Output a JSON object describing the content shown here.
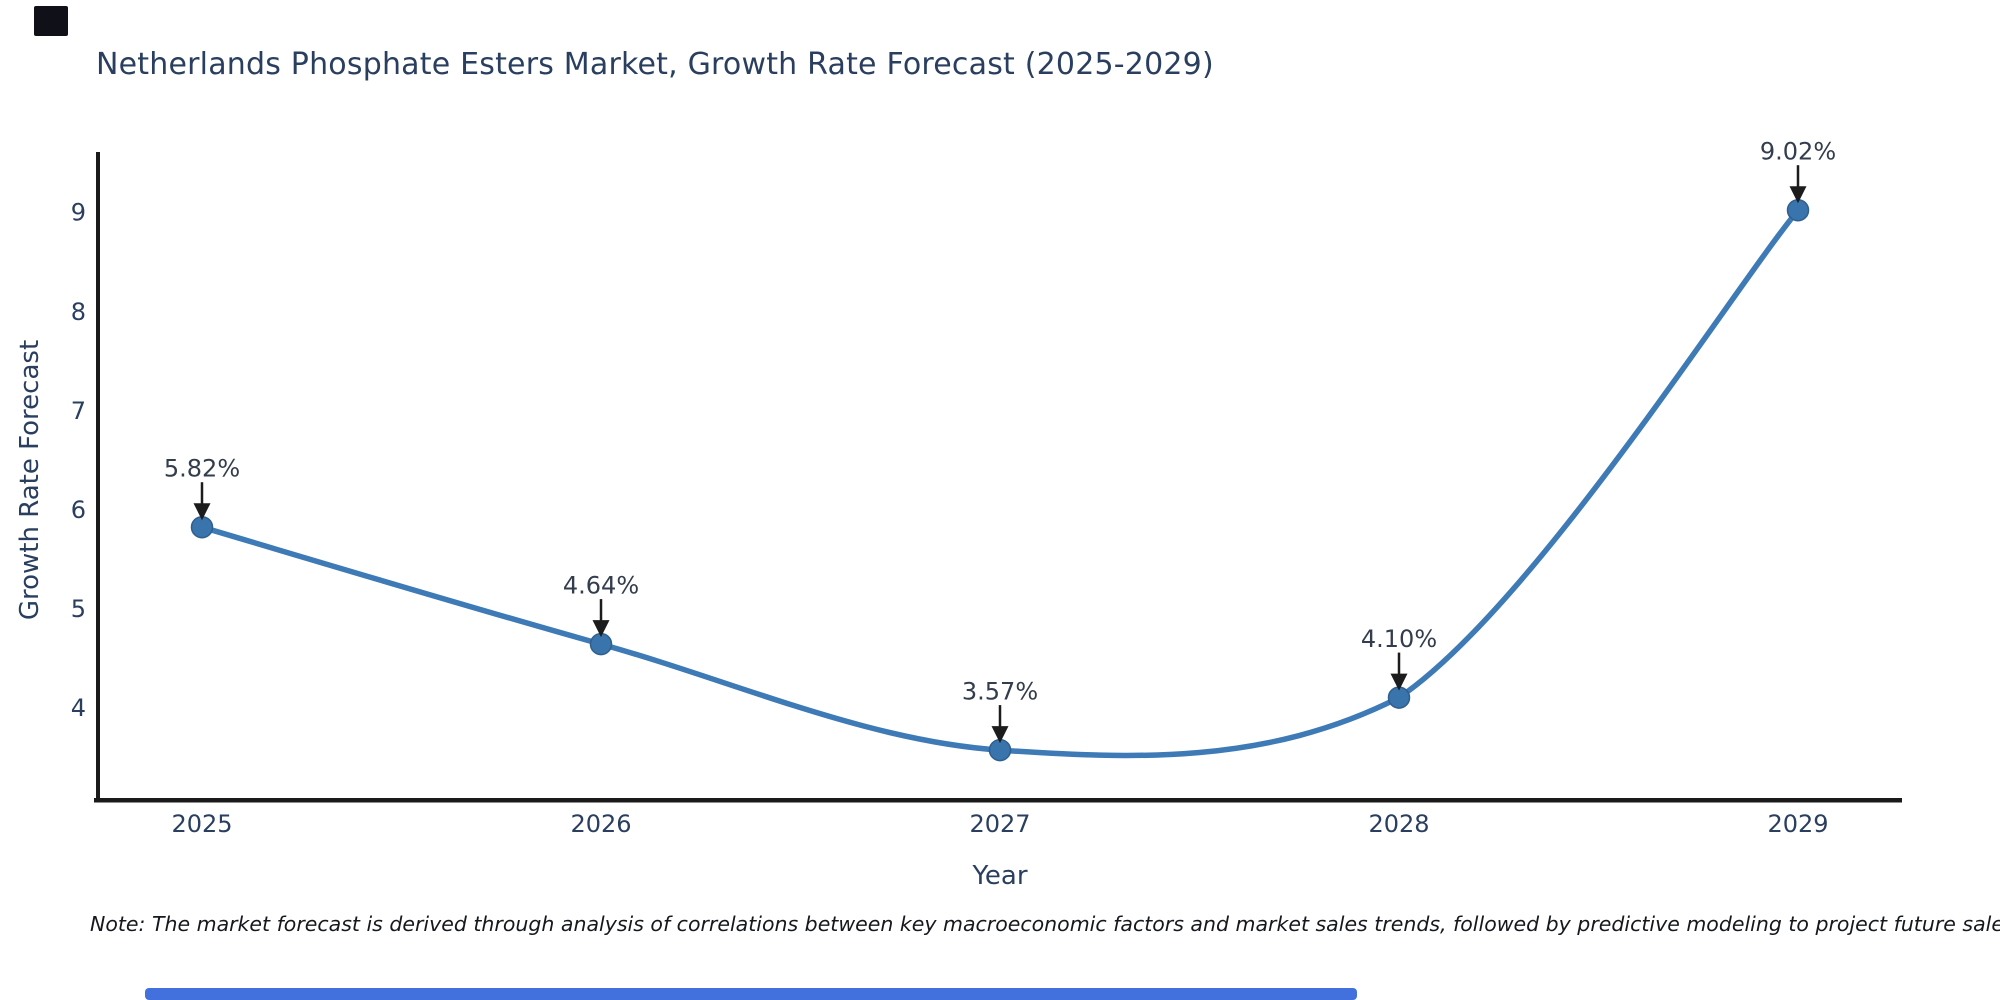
{
  "chart_data": {
    "type": "line",
    "curve": "spline",
    "title": "Netherlands Phosphate Esters Market, Growth Rate Forecast (2025-2029)",
    "xlabel": "Year",
    "ylabel": "Growth Rate Forecast",
    "x": [
      2025,
      2026,
      2027,
      2028,
      2029
    ],
    "values": [
      5.82,
      4.64,
      3.57,
      4.1,
      9.02
    ],
    "point_labels": [
      "5.82%",
      "4.64%",
      "3.57%",
      "4.10%",
      "9.02%"
    ],
    "yticks": [
      4,
      5,
      6,
      7,
      8,
      9
    ],
    "ylim": [
      3.07,
      9.6
    ],
    "grid": false,
    "legend": null
  },
  "footnote": {
    "text": "Note: The market forecast is derived through analysis of correlations between key macroeconomic factors and market sales trends, followed by predictive modeling to project future sales."
  },
  "colors": {
    "line": "#3e7ab6",
    "marker": "#3a74ad",
    "marker_edge": "#2e5f8f",
    "axis": "#1a1a1a",
    "text": "#2a3f5f",
    "annotation_text": "#333d4d",
    "arrow": "#1c1c1c",
    "logo": "#101018",
    "scrollbar": "#4271dd"
  }
}
